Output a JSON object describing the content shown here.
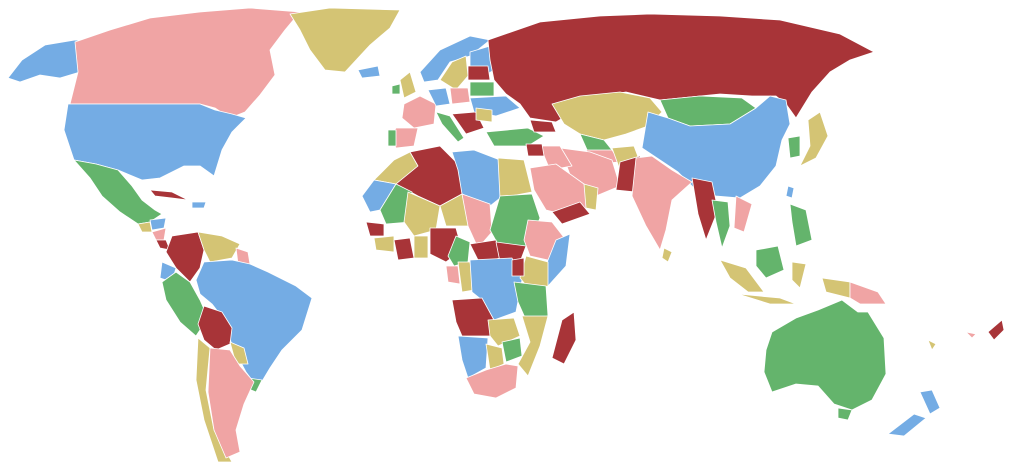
{
  "map": {
    "type": "world-choropleth",
    "background": "#ffffff",
    "border_color": "#ffffff",
    "palette": {
      "red": "#a83438",
      "pink": "#f0a4a4",
      "blue": "#74ace4",
      "green": "#64b46c",
      "yellow": "#d4c474"
    }
  }
}
